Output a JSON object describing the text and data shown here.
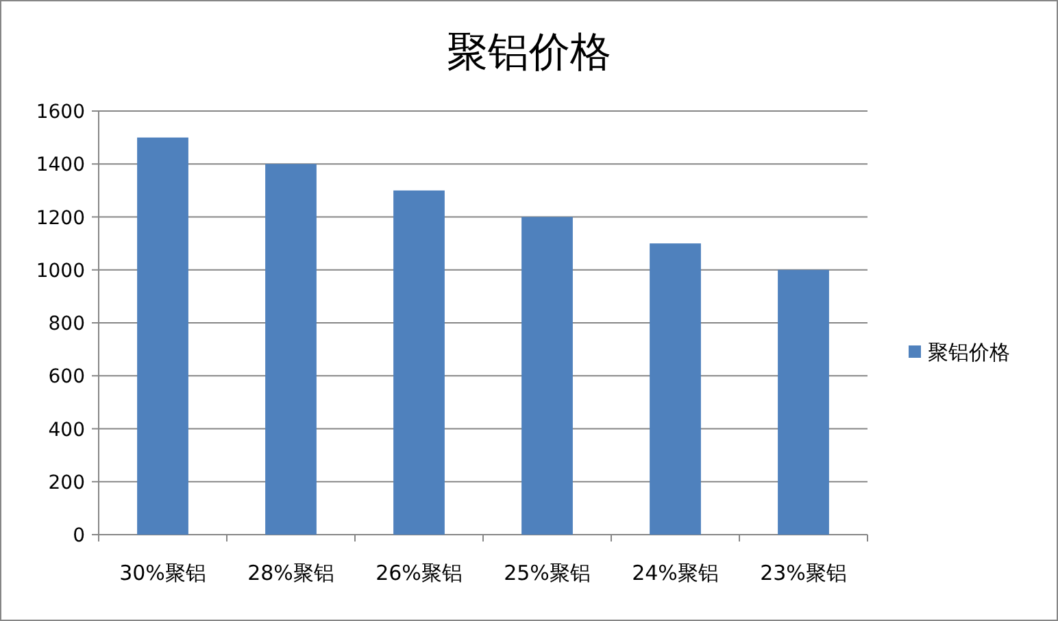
{
  "chart_data": {
    "type": "bar",
    "title": "聚铝价格",
    "categories": [
      "30%聚铝",
      "28%聚铝",
      "26%聚铝",
      "25%聚铝",
      "24%聚铝",
      "23%聚铝"
    ],
    "series": [
      {
        "name": "聚铝价格",
        "color": "#4f81bd",
        "values": [
          1500,
          1400,
          1300,
          1200,
          1100,
          1000
        ]
      }
    ],
    "ylim": [
      0,
      1600
    ],
    "yticks": [
      0,
      200,
      400,
      600,
      800,
      1000,
      1200,
      1400,
      1600
    ],
    "grid": "y",
    "legend": "right"
  }
}
